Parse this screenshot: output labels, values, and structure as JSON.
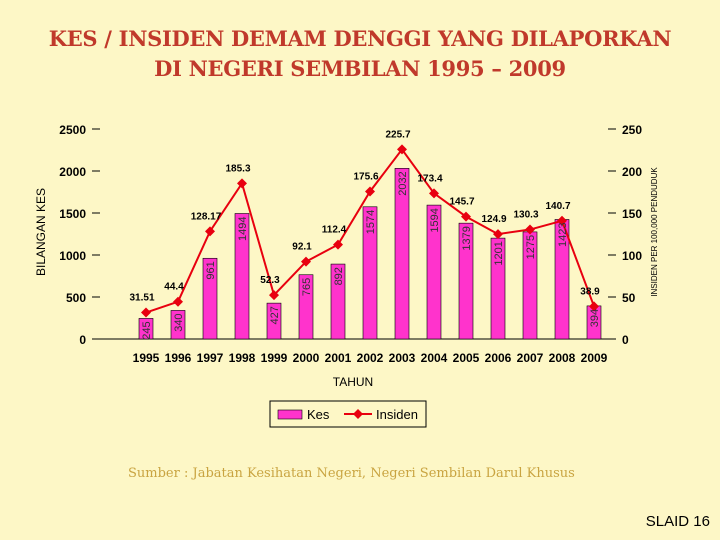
{
  "title_line1": "KES / INSIDEN DEMAM DENGGI YANG DILAPORKAN",
  "title_line2": "DI NEGERI SEMBILAN 1995 – 2009",
  "source": "Sumber : Jabatan Kesihatan Negeri, Negeri Sembilan Darul Khusus",
  "slide_label": "SLAID 16",
  "colors": {
    "bar": "#ff33cc",
    "line": "#e8000f",
    "title": "#c0392b",
    "background": "#fdf7c6"
  },
  "chart_data": {
    "type": "bar",
    "categories": [
      "1995",
      "1996",
      "1997",
      "1998",
      "1999",
      "2000",
      "2001",
      "2002",
      "2003",
      "2004",
      "2005",
      "2006",
      "2007",
      "2008",
      "2009"
    ],
    "series": [
      {
        "name": "Kes",
        "type": "bar",
        "axis": "left",
        "values": [
          245,
          340,
          961,
          1494,
          427,
          765,
          892,
          1574,
          2032,
          1594,
          1379,
          1201,
          1275,
          1423,
          394
        ],
        "labels": [
          "245",
          "340",
          "961",
          "1494",
          "427",
          "765",
          "892",
          "1574",
          "2032",
          "1594",
          "1379",
          "1201",
          "1275",
          "1423",
          "394"
        ]
      },
      {
        "name": "Insiden",
        "type": "line",
        "axis": "right",
        "values": [
          31.51,
          44.4,
          128.17,
          185.3,
          52.3,
          92.1,
          112.4,
          175.6,
          225.7,
          173.4,
          145.7,
          124.9,
          130.3,
          140.7,
          38.9
        ],
        "labels": [
          "31.51",
          "44.4",
          "128.17",
          "185.3",
          "52.3",
          "92.1",
          "112.4",
          "175.6",
          "225.7",
          "173.4",
          "145.7",
          "124.9",
          "130.3",
          "140.7",
          "38.9"
        ]
      }
    ],
    "xlabel": "TAHUN",
    "ylabel": "BILANGAN KES",
    "y2label": "INSIDEN PER 100,000 PENDUDUK",
    "ylim": [
      0,
      2500
    ],
    "y2lim": [
      0,
      250
    ],
    "yticks": [
      "0",
      "500",
      "1000",
      "1500",
      "2000",
      "2500"
    ],
    "y2ticks": [
      "0",
      "50",
      "100",
      "150",
      "200",
      "250"
    ],
    "legend": [
      "Kes",
      "Insiden"
    ],
    "grid": false
  }
}
